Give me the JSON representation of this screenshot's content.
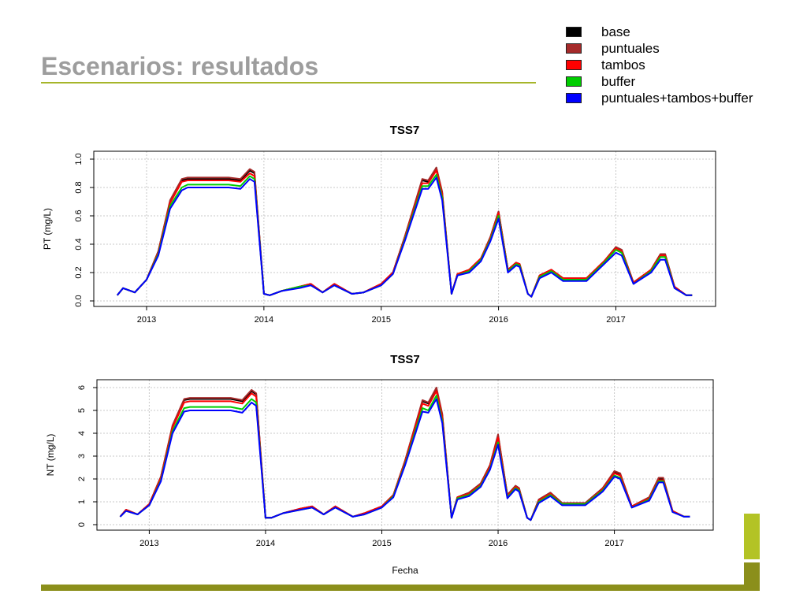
{
  "slide": {
    "title": "Escenarios: resultados"
  },
  "colors": {
    "title_text": "#9d9d9d",
    "title_rule": "#a6b52a",
    "accent_light": "#b3c325",
    "accent_dark": "#8b8f1b"
  },
  "legend": [
    {
      "label": "base",
      "color": "#000000"
    },
    {
      "label": "puntuales",
      "color": "#a52a2a"
    },
    {
      "label": "tambos",
      "color": "#ff0000"
    },
    {
      "label": "buffer",
      "color": "#00cd00"
    },
    {
      "label": "puntuales+tambos+buffer",
      "color": "#0000ff"
    }
  ],
  "chart_data": [
    {
      "type": "line",
      "title": "TSS7",
      "xlabel": "",
      "ylabel": "PT (mg/L)",
      "xlim": [
        2012.55,
        2017.85
      ],
      "ylim": [
        0,
        1.0
      ],
      "x_ticks": [
        "2013",
        "2014",
        "2015",
        "2016",
        "2017"
      ],
      "y_ticks": [
        "0.0",
        "0.2",
        "0.4",
        "0.6",
        "0.8",
        "1.0"
      ],
      "grid": true,
      "x": [
        2012.75,
        2012.8,
        2012.9,
        2013.0,
        2013.1,
        2013.2,
        2013.3,
        2013.35,
        2013.5,
        2013.7,
        2013.8,
        2013.88,
        2013.92,
        2014.0,
        2014.05,
        2014.15,
        2014.3,
        2014.4,
        2014.5,
        2014.6,
        2014.75,
        2014.85,
        2015.0,
        2015.1,
        2015.2,
        2015.35,
        2015.4,
        2015.47,
        2015.52,
        2015.6,
        2015.65,
        2015.75,
        2015.85,
        2015.93,
        2016.0,
        2016.08,
        2016.15,
        2016.18,
        2016.25,
        2016.28,
        2016.35,
        2016.45,
        2016.55,
        2016.65,
        2016.75,
        2016.9,
        2017.0,
        2017.05,
        2017.15,
        2017.3,
        2017.38,
        2017.42,
        2017.5,
        2017.6,
        2017.65
      ],
      "series": [
        {
          "name": "base",
          "values": [
            0.04,
            0.09,
            0.06,
            0.15,
            0.35,
            0.7,
            0.85,
            0.86,
            0.86,
            0.86,
            0.85,
            0.92,
            0.9,
            0.05,
            0.04,
            0.07,
            0.1,
            0.12,
            0.06,
            0.12,
            0.05,
            0.06,
            0.12,
            0.2,
            0.45,
            0.85,
            0.84,
            0.94,
            0.76,
            0.05,
            0.19,
            0.22,
            0.3,
            0.45,
            0.63,
            0.22,
            0.27,
            0.26,
            0.05,
            0.03,
            0.18,
            0.22,
            0.16,
            0.16,
            0.16,
            0.28,
            0.38,
            0.36,
            0.13,
            0.22,
            0.33,
            0.33,
            0.1,
            0.04,
            0.04
          ]
        },
        {
          "name": "puntuales",
          "values": [
            0.04,
            0.09,
            0.06,
            0.15,
            0.35,
            0.71,
            0.86,
            0.87,
            0.87,
            0.87,
            0.86,
            0.93,
            0.91,
            0.05,
            0.04,
            0.07,
            0.1,
            0.12,
            0.06,
            0.12,
            0.05,
            0.06,
            0.12,
            0.2,
            0.45,
            0.86,
            0.85,
            0.94,
            0.77,
            0.05,
            0.19,
            0.22,
            0.3,
            0.45,
            0.63,
            0.22,
            0.27,
            0.26,
            0.05,
            0.03,
            0.18,
            0.22,
            0.16,
            0.16,
            0.16,
            0.28,
            0.38,
            0.36,
            0.13,
            0.22,
            0.33,
            0.33,
            0.1,
            0.04,
            0.04
          ]
        },
        {
          "name": "tambos",
          "values": [
            0.04,
            0.09,
            0.06,
            0.15,
            0.34,
            0.69,
            0.84,
            0.85,
            0.85,
            0.85,
            0.84,
            0.9,
            0.88,
            0.05,
            0.04,
            0.07,
            0.1,
            0.12,
            0.06,
            0.12,
            0.05,
            0.06,
            0.12,
            0.2,
            0.44,
            0.83,
            0.83,
            0.92,
            0.75,
            0.05,
            0.19,
            0.22,
            0.3,
            0.44,
            0.62,
            0.22,
            0.27,
            0.26,
            0.05,
            0.03,
            0.18,
            0.22,
            0.16,
            0.16,
            0.16,
            0.28,
            0.37,
            0.35,
            0.13,
            0.22,
            0.32,
            0.32,
            0.1,
            0.04,
            0.04
          ]
        },
        {
          "name": "buffer",
          "values": [
            0.04,
            0.09,
            0.06,
            0.15,
            0.33,
            0.67,
            0.8,
            0.82,
            0.82,
            0.82,
            0.81,
            0.88,
            0.86,
            0.05,
            0.04,
            0.07,
            0.1,
            0.11,
            0.06,
            0.11,
            0.05,
            0.06,
            0.11,
            0.19,
            0.43,
            0.81,
            0.81,
            0.89,
            0.73,
            0.05,
            0.18,
            0.21,
            0.29,
            0.43,
            0.6,
            0.21,
            0.26,
            0.25,
            0.05,
            0.03,
            0.17,
            0.21,
            0.15,
            0.15,
            0.15,
            0.27,
            0.36,
            0.34,
            0.12,
            0.21,
            0.31,
            0.31,
            0.09,
            0.04,
            0.04
          ]
        },
        {
          "name": "puntuales+tambos+buffer",
          "values": [
            0.04,
            0.09,
            0.06,
            0.15,
            0.32,
            0.65,
            0.78,
            0.8,
            0.8,
            0.8,
            0.79,
            0.86,
            0.84,
            0.05,
            0.04,
            0.07,
            0.09,
            0.11,
            0.06,
            0.11,
            0.05,
            0.06,
            0.11,
            0.19,
            0.42,
            0.79,
            0.79,
            0.87,
            0.71,
            0.05,
            0.18,
            0.2,
            0.28,
            0.42,
            0.58,
            0.2,
            0.25,
            0.24,
            0.05,
            0.03,
            0.16,
            0.2,
            0.14,
            0.14,
            0.14,
            0.26,
            0.34,
            0.32,
            0.12,
            0.2,
            0.29,
            0.29,
            0.09,
            0.04,
            0.04
          ]
        }
      ]
    },
    {
      "type": "line",
      "title": "TSS7",
      "xlabel": "Fecha",
      "ylabel": "NT (mg/L)",
      "xlim": [
        2012.55,
        2017.85
      ],
      "ylim": [
        0,
        6
      ],
      "x_ticks": [
        "2013",
        "2014",
        "2015",
        "2016",
        "2017"
      ],
      "y_ticks": [
        "0",
        "1",
        "2",
        "3",
        "4",
        "5",
        "6"
      ],
      "grid": true,
      "x": [
        2012.75,
        2012.8,
        2012.9,
        2013.0,
        2013.1,
        2013.2,
        2013.3,
        2013.35,
        2013.5,
        2013.7,
        2013.8,
        2013.88,
        2013.92,
        2014.0,
        2014.05,
        2014.15,
        2014.3,
        2014.4,
        2014.5,
        2014.6,
        2014.75,
        2014.85,
        2015.0,
        2015.1,
        2015.2,
        2015.35,
        2015.4,
        2015.47,
        2015.52,
        2015.6,
        2015.65,
        2015.75,
        2015.85,
        2015.93,
        2016.0,
        2016.08,
        2016.15,
        2016.18,
        2016.25,
        2016.28,
        2016.35,
        2016.45,
        2016.55,
        2016.65,
        2016.75,
        2016.9,
        2017.0,
        2017.05,
        2017.15,
        2017.3,
        2017.38,
        2017.42,
        2017.5,
        2017.6,
        2017.65
      ],
      "series": [
        {
          "name": "base",
          "values": [
            0.35,
            0.65,
            0.45,
            0.9,
            2.1,
            4.3,
            5.45,
            5.5,
            5.5,
            5.5,
            5.4,
            5.85,
            5.7,
            0.3,
            0.3,
            0.5,
            0.7,
            0.8,
            0.45,
            0.8,
            0.35,
            0.5,
            0.8,
            1.3,
            2.8,
            5.4,
            5.3,
            5.95,
            4.8,
            0.3,
            1.2,
            1.4,
            1.8,
            2.6,
            3.9,
            1.3,
            1.7,
            1.6,
            0.3,
            0.2,
            1.1,
            1.4,
            0.95,
            0.95,
            0.95,
            1.6,
            2.3,
            2.2,
            0.8,
            1.2,
            2.0,
            2.0,
            0.6,
            0.35,
            0.35
          ]
        },
        {
          "name": "puntuales",
          "values": [
            0.35,
            0.65,
            0.45,
            0.9,
            2.1,
            4.35,
            5.5,
            5.55,
            5.55,
            5.55,
            5.45,
            5.9,
            5.75,
            0.3,
            0.3,
            0.5,
            0.7,
            0.8,
            0.45,
            0.8,
            0.35,
            0.5,
            0.8,
            1.3,
            2.8,
            5.45,
            5.35,
            6.0,
            4.85,
            0.3,
            1.2,
            1.4,
            1.8,
            2.6,
            3.95,
            1.3,
            1.7,
            1.6,
            0.3,
            0.2,
            1.1,
            1.4,
            0.95,
            0.95,
            0.95,
            1.6,
            2.35,
            2.25,
            0.8,
            1.2,
            2.05,
            2.05,
            0.6,
            0.35,
            0.35
          ]
        },
        {
          "name": "tambos",
          "values": [
            0.35,
            0.65,
            0.45,
            0.9,
            2.05,
            4.25,
            5.35,
            5.4,
            5.4,
            5.4,
            5.3,
            5.75,
            5.6,
            0.3,
            0.3,
            0.5,
            0.7,
            0.8,
            0.45,
            0.8,
            0.35,
            0.5,
            0.8,
            1.3,
            2.75,
            5.3,
            5.2,
            5.85,
            4.7,
            0.3,
            1.2,
            1.35,
            1.75,
            2.55,
            3.8,
            1.25,
            1.65,
            1.55,
            0.3,
            0.2,
            1.05,
            1.35,
            0.9,
            0.9,
            0.9,
            1.55,
            2.25,
            2.15,
            0.8,
            1.15,
            1.95,
            1.95,
            0.6,
            0.35,
            0.35
          ]
        },
        {
          "name": "buffer",
          "values": [
            0.35,
            0.6,
            0.45,
            0.85,
            1.95,
            4.1,
            5.1,
            5.15,
            5.15,
            5.15,
            5.05,
            5.5,
            5.35,
            0.3,
            0.3,
            0.5,
            0.65,
            0.75,
            0.45,
            0.75,
            0.35,
            0.45,
            0.75,
            1.25,
            2.65,
            5.1,
            5.0,
            5.65,
            4.55,
            0.3,
            1.15,
            1.3,
            1.7,
            2.45,
            3.6,
            1.2,
            1.6,
            1.5,
            0.3,
            0.2,
            1.0,
            1.3,
            0.9,
            0.9,
            0.9,
            1.5,
            2.15,
            2.05,
            0.75,
            1.1,
            1.9,
            1.9,
            0.55,
            0.35,
            0.35
          ]
        },
        {
          "name": "puntuales+tambos+buffer",
          "values": [
            0.35,
            0.6,
            0.45,
            0.85,
            1.9,
            4.0,
            4.95,
            5.0,
            5.0,
            5.0,
            4.9,
            5.35,
            5.2,
            0.3,
            0.3,
            0.5,
            0.65,
            0.75,
            0.45,
            0.75,
            0.35,
            0.45,
            0.75,
            1.2,
            2.6,
            4.95,
            4.9,
            5.5,
            4.45,
            0.3,
            1.1,
            1.25,
            1.65,
            2.4,
            3.5,
            1.15,
            1.55,
            1.45,
            0.3,
            0.2,
            0.95,
            1.25,
            0.85,
            0.85,
            0.85,
            1.45,
            2.1,
            2.0,
            0.75,
            1.05,
            1.85,
            1.85,
            0.55,
            0.35,
            0.35
          ]
        }
      ]
    }
  ]
}
